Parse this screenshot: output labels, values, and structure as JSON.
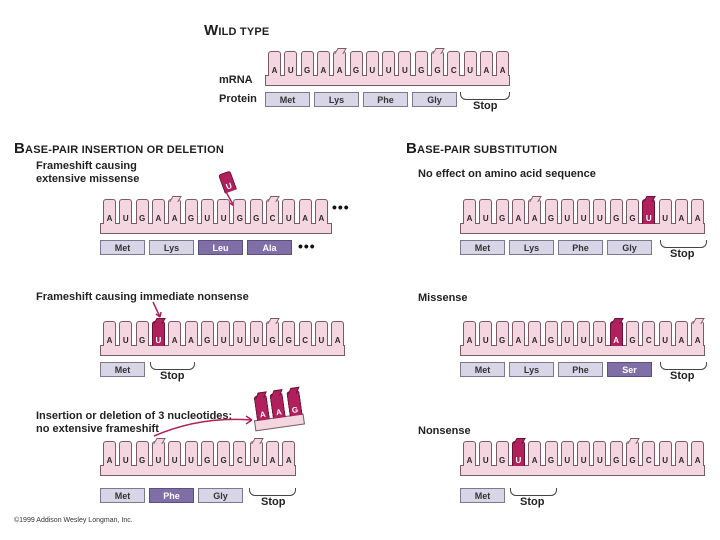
{
  "wild_type": {
    "title_cap": "W",
    "title_rest": "ILD TYPE",
    "mrna_label": "mRNA",
    "protein_label": "Protein",
    "bases": [
      "A",
      "U",
      "G",
      "A",
      "A",
      "G",
      "U",
      "U",
      "U",
      "G",
      "G",
      "C",
      "U",
      "A",
      "A"
    ],
    "protein": [
      "Met",
      "Lys",
      "Phe",
      "Gly"
    ],
    "stop_label": "Stop"
  },
  "insertion_section": {
    "title_cap": "B",
    "title_rest": "ASE-PAIR INSERTION OR DELETION",
    "missense_shift": {
      "label_line1": "Frameshift causing",
      "label_line2": "extensive missense",
      "inserted_base": "U",
      "bases": [
        "A",
        "U",
        "G",
        "A",
        "A",
        "G",
        "U",
        "U",
        "G",
        "G",
        "C",
        "U",
        "A",
        "A"
      ],
      "ellipsis": "•••",
      "protein": [
        "Met",
        "Lys",
        "Leu",
        "Ala"
      ],
      "protein_ellipsis": "•••"
    },
    "nonsense_shift": {
      "label": "Frameshift causing immediate nonsense",
      "bases": [
        "A",
        "U",
        "G",
        "U",
        "A",
        "A",
        "G",
        "U",
        "U",
        "U",
        "G",
        "G",
        "C",
        "U",
        "A"
      ],
      "protein": [
        "Met"
      ],
      "stop_label": "Stop"
    },
    "three_nucleotides": {
      "label_line1": "Insertion or deletion of 3 nucleotides:",
      "label_line2": "no extensive frameshift",
      "removed_bases": [
        "A",
        "A",
        "G"
      ],
      "bases": [
        "A",
        "U",
        "G",
        "U",
        "U",
        "U",
        "G",
        "G",
        "C",
        "U",
        "A",
        "A"
      ],
      "protein": [
        "Met",
        "Phe",
        "Gly"
      ],
      "stop_label": "Stop"
    }
  },
  "substitution_section": {
    "title_cap": "B",
    "title_rest": "ASE-PAIR SUBSTITUTION",
    "no_effect": {
      "label": "No effect on amino acid sequence",
      "bases": [
        "A",
        "U",
        "G",
        "A",
        "A",
        "G",
        "U",
        "U",
        "U",
        "G",
        "G",
        "U",
        "U",
        "A",
        "A"
      ],
      "protein": [
        "Met",
        "Lys",
        "Phe",
        "Gly"
      ],
      "stop_label": "Stop"
    },
    "missense": {
      "label": "Missense",
      "bases": [
        "A",
        "U",
        "G",
        "A",
        "A",
        "G",
        "U",
        "U",
        "U",
        "A",
        "G",
        "C",
        "U",
        "A",
        "A"
      ],
      "protein": [
        "Met",
        "Lys",
        "Phe",
        "Ser"
      ],
      "stop_label": "Stop"
    },
    "nonsense": {
      "label": "Nonsense",
      "bases": [
        "A",
        "U",
        "G",
        "U",
        "A",
        "G",
        "U",
        "U",
        "U",
        "G",
        "G",
        "C",
        "U",
        "A",
        "A"
      ],
      "protein": [
        "Met"
      ],
      "stop_label": "Stop"
    }
  },
  "copyright": "©1999 Addison Wesley Longman, Inc.",
  "colors": {
    "nucleotide_fill": "#f3d6e0",
    "mutation_fill": "#b0205c",
    "amino_acid_fill": "#d8d6e6",
    "changed_amino_acid_fill": "#7f6fa6"
  }
}
